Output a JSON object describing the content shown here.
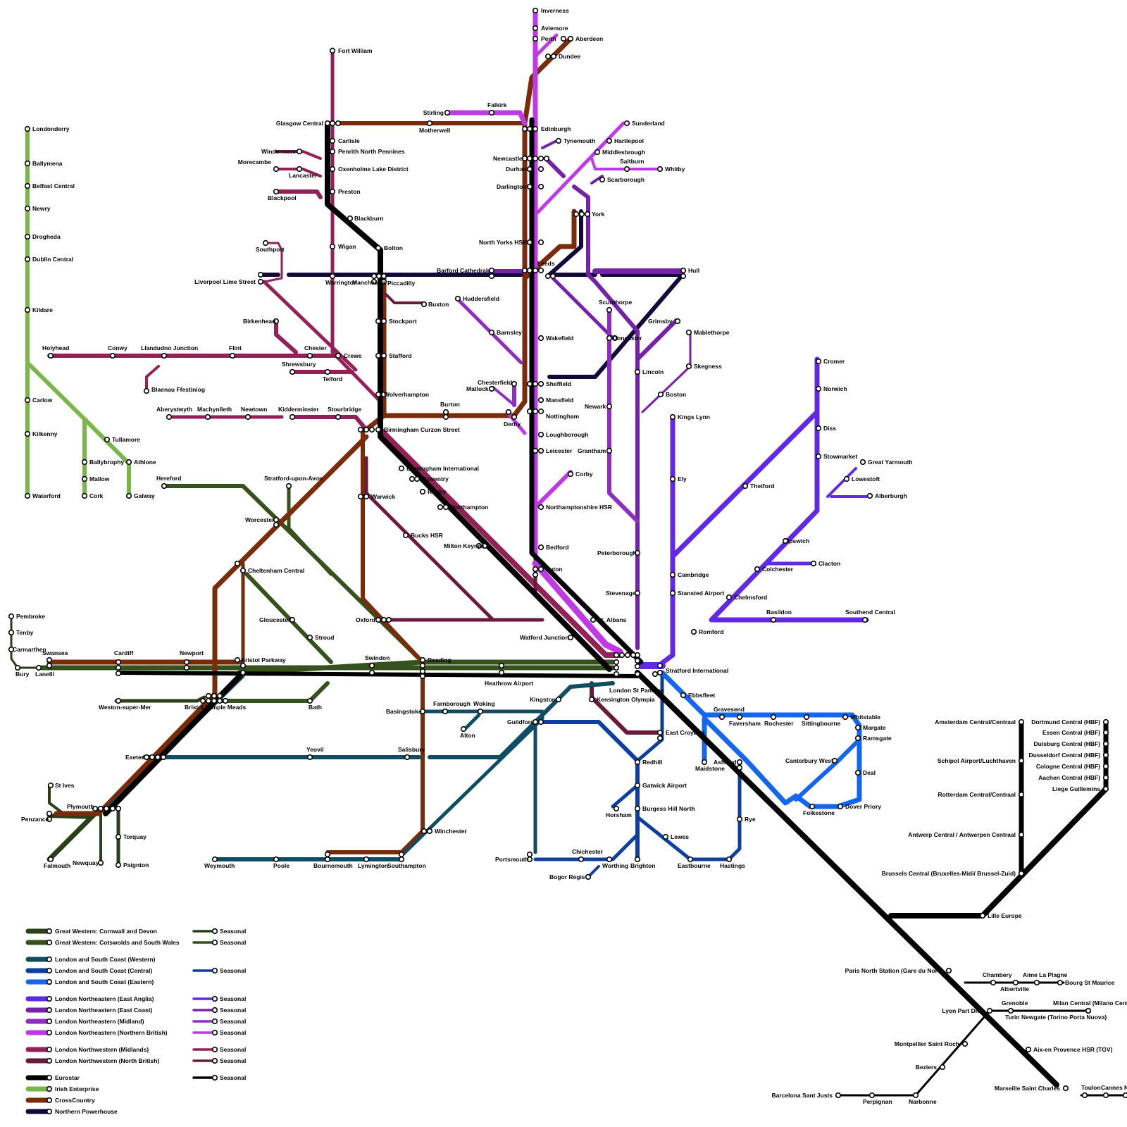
{
  "colors": {
    "gw_cornwall": "#2a3f17",
    "gw_cotswolds": "#35521d",
    "lsc_western": "#0e4d63",
    "lsc_central": "#0c3fa0",
    "lsc_eastern": "#1466ee",
    "lne_eastanglia": "#6128e6",
    "lne_eastcoast": "#7522a8",
    "lne_midland": "#8e2dbf",
    "lne_northern": "#bf3ae6",
    "lnw_midlands": "#932157",
    "lnw_north": "#6b1a3c",
    "eurostar": "#000000",
    "irish": "#7ab648",
    "crosscountry": "#7a2b0a",
    "northern_powerhouse": "#12083a"
  },
  "legend": {
    "main": [
      {
        "label": "Great Western: Cornwall and Devon",
        "color": "#2a3f17"
      },
      {
        "label": "Great Western: Cotswolds and  South Wales",
        "color": "#35521d"
      },
      {
        "label": "London and South Coast (Western)",
        "color": "#0e4d63"
      },
      {
        "label": "London and South Coast (Central)",
        "color": "#0c3fa0"
      },
      {
        "label": "London and South Coast (Eastern)",
        "color": "#1466ee"
      },
      {
        "label": "London Northeastern  (East Anglia)",
        "color": "#6128e6"
      },
      {
        "label": "London Northeastern (East Coast)",
        "color": "#7522a8"
      },
      {
        "label": "London Northeastern (Midland)",
        "color": "#8e2dbf"
      },
      {
        "label": "London Northeastern (Northern British)",
        "color": "#bf3ae6"
      },
      {
        "label": "London Northwestern (Midlands)",
        "color": "#932157"
      },
      {
        "label": "London Northwestern (North British)",
        "color": "#6b1a3c"
      },
      {
        "label": "Eurostar",
        "color": "#000000"
      },
      {
        "label": "Irish Enterprise",
        "color": "#7ab648"
      },
      {
        "label": "CrossCountry",
        "color": "#7a2b0a"
      },
      {
        "label": "Northern Powerhouse",
        "color": "#12083a"
      }
    ],
    "seasonal": [
      {
        "label": "Seasonal",
        "color": "#2a3f17"
      },
      {
        "label": "Seasonal",
        "color": "#35521d"
      },
      {
        "label": "Seasonal",
        "color": "#0c3fa0"
      },
      {
        "label": "Seasonal",
        "color": "#6128e6"
      },
      {
        "label": "Seasonal",
        "color": "#7522a8"
      },
      {
        "label": "Seasonal",
        "color": "#8e2dbf"
      },
      {
        "label": "Seasonal",
        "color": "#bf3ae6"
      },
      {
        "label": "Seasonal",
        "color": "#932157"
      },
      {
        "label": "Seasonal",
        "color": "#6b1a3c"
      },
      {
        "label": "Seasonal",
        "color": "#000000"
      }
    ]
  },
  "stations": [
    "Inverness",
    "Aviemore",
    "Perth",
    "Aberdeen",
    "Dundee",
    "Falkirk",
    "Stirling",
    "Motherwell",
    "Edinburgh",
    "Fort William",
    "Glasgow Central",
    "Carlisle",
    "Penrith North Pennines",
    "Oxenholme Lake District",
    "Windermere",
    "Morecambe",
    "Lancaster",
    "Blackpool",
    "Preston",
    "Blackburn",
    "Southport",
    "Wigan",
    "Bolton",
    "Liverpool Lime Street",
    "Warrington",
    "Manchester",
    "Piccadilly",
    "Buxton",
    "Stockport",
    "Birkenhead",
    "Chester",
    "Crewe",
    "Holyhead",
    "Conwy",
    "Llandudno Junction",
    "Flint",
    "Blaenau Ffestiniog",
    "Shrewsbury",
    "Telford",
    "Stafford",
    "Wolverhampton",
    "Aberystwyth",
    "Machynlleth",
    "Newtown",
    "Kidderminster",
    "Stourbridge",
    "Birmingham Curzon Street",
    "Birmingham International",
    "Coventry",
    "Rugby",
    "Northampton",
    "Warwick",
    "Bucks HSR",
    "Milton Keynes",
    "Hereford",
    "Stratford-upon-Avon",
    "Worcester",
    "Cheltenham Central",
    "Gloucester",
    "Stroud",
    "Oxford",
    "Reading",
    "Swindon",
    "Heathrow Airport",
    "Pembroke",
    "Tenby",
    "Carmarthen",
    "Bury",
    "Lanelli",
    "Swansea",
    "Cardiff",
    "Newport",
    "Bristol Parkway",
    "Weston-super-Mer",
    "Bristol Temple Meads",
    "Bath",
    "Exeter",
    "Yeovil",
    "Salisbury",
    "Basingstoke",
    "Farnborough",
    "Woking",
    "Alton",
    "Guildford",
    "Kingston",
    "Kensington Olympia",
    "London St Pancras",
    "Stratford International",
    "Plymouth",
    "St Ives",
    "Penzance",
    "Falmouth",
    "Newquay",
    "Torquay",
    "Paignton",
    "Weymouth",
    "Poole",
    "Bournemouth",
    "Lymington",
    "Southampton",
    "Winchester",
    "Portsmouth",
    "Chichester",
    "Bogor Regis",
    "Worthing",
    "Brighton",
    "Horsham",
    "Burgess Hill North",
    "Gatwick Airport",
    "Redhill",
    "East Croydon",
    "Lewes",
    "Eastbourne",
    "Hastings",
    "Rye",
    "Ashford",
    "Maidstone",
    "Ebbsfleet",
    "Gravesend",
    "Faversham",
    "Rochester",
    "Sittingbourne",
    "Whitstable",
    "Margate",
    "Ramsgate",
    "Canterbury West",
    "Deal",
    "Dover Priory",
    "Folkestone",
    "Newcastle",
    "Tynemouth",
    "Durham",
    "Darlington",
    "Sunderland",
    "Hartlepool",
    "Middlesbrough",
    "Saltburn",
    "Whitby",
    "Scarborough",
    "York",
    "North Yorks HSR",
    "Leeds",
    "Barford Cathedral",
    "Hull",
    "Huddersfield",
    "Barnsley",
    "Wakefield",
    "Scunthorpe",
    "Doncaster",
    "Grimsby",
    "Mablethorpe",
    "Skegness",
    "Lincoln",
    "Boston",
    "Sheffield",
    "Chesterfield",
    "Matlock",
    "Mansfield",
    "Nottingham",
    "Derby",
    "Burton",
    "Loughborough",
    "Leicester",
    "Newark",
    "Grantham",
    "Corby",
    "Northamptonshire HSR",
    "Kings Lynn",
    "Ely",
    "Peterborough",
    "Bedford",
    "Luton",
    "Stevenage",
    "St. Albans",
    "Watford Junction",
    "Cambridge",
    "Stansted Airport",
    "Thetford",
    "Cromer",
    "Norwich",
    "Diss",
    "Stowmarket",
    "Great Yarmouth",
    "Lowestoft",
    "Alberburgh",
    "Ipswich",
    "Clacton",
    "Colchester",
    "Chelmsford",
    "Basildon",
    "Southend Central",
    "Romford",
    "Londonderry",
    "Ballymena",
    "Belfast Central",
    "Newry",
    "Drogheda",
    "Dublin Central",
    "Kildare",
    "Carlow",
    "Kilkenny",
    "Waterford",
    "Tullamore",
    "Ballybrophy",
    "Mallow",
    "Cork",
    "Athlone",
    "Galway",
    "Amsterdam Central/Centraal",
    "Schipol Airport/Luchthaven",
    "Rotterdam Central/Centraal",
    "Antwerp Central / Antwerpen Centraal",
    "Brussels Central (Bruxelles-Midi/ Brussel-Zuid)",
    "Dortmund Central (HBF)",
    "Essen Central (HBF)",
    "Duisburg Central (HBF)",
    "Dusseldorf Central (HBF)",
    "Cologne Central (HBF)",
    "Aachen Central (HBF)",
    "Liege Guillemins",
    "Lille Europe",
    "Paris North Station (Gare du Nord)",
    "Chambery",
    "Aime La Plagne",
    "Albertville",
    "Bourg St Maurice",
    "Lyon Part Dieu",
    "Grenoble",
    "Milan Central (Milano Centrale)",
    "Turin Newgate (Torino Porta Nuova)",
    "Montpellier Saint Roch",
    "Aix-en Provence HSR (TGV)",
    "Beziers",
    "Marseille Saint Charles",
    "Toulon",
    "Cannes",
    "Nice",
    "Barcelona Sant Justs",
    "Perpignan",
    "Narbonne"
  ]
}
